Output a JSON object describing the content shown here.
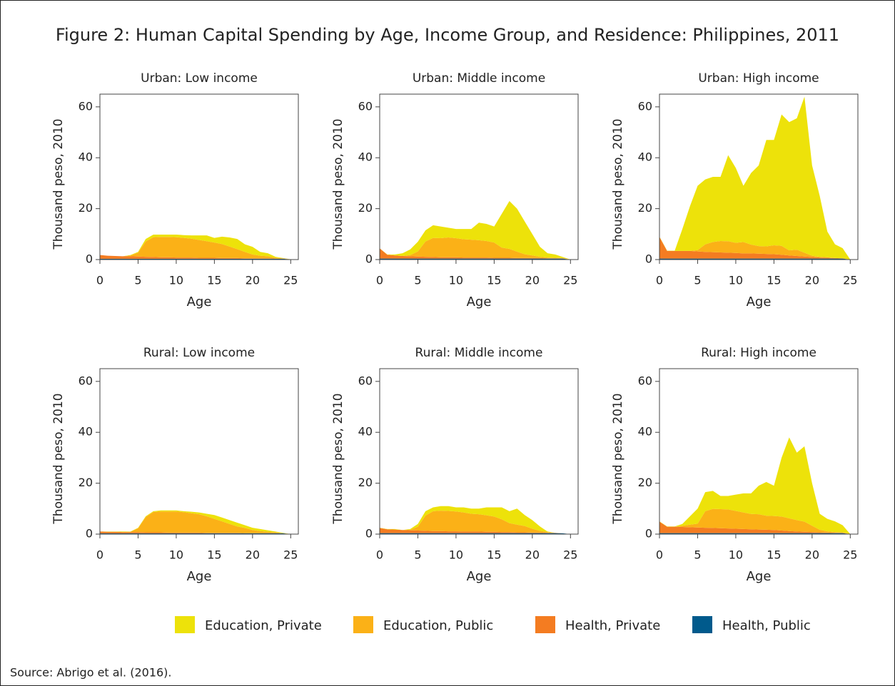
{
  "title": "Figure 2: Human Capital Spending by Age, Income Group, and Residence: Philippines, 2011",
  "source": "Source: Abrigo et al. (2016).",
  "chart_data": [
    {
      "type": "stacked_area",
      "title": "Urban: Low income",
      "xlabel": "Age",
      "ylabel": "Thousand peso, 2010",
      "x": [
        0,
        1,
        2,
        3,
        4,
        5,
        6,
        7,
        8,
        9,
        10,
        11,
        12,
        13,
        14,
        15,
        16,
        17,
        18,
        19,
        20,
        21,
        22,
        23,
        24,
        25
      ],
      "xlim": [
        0,
        26
      ],
      "xticks": [
        0,
        5,
        10,
        15,
        20,
        25
      ],
      "ylim": [
        0,
        65
      ],
      "yticks": [
        0,
        20,
        40,
        60
      ],
      "series": [
        {
          "name": "Education, Private",
          "color": "#ede20a",
          "values": [
            0,
            0,
            0,
            0,
            0.2,
            0.3,
            1,
            1,
            0.9,
            0.9,
            1,
            1.1,
            1.3,
            1.8,
            2.3,
            1.8,
            2.9,
            3.6,
            4,
            3,
            3,
            1.5,
            1.2,
            0.4,
            0.1,
            0
          ]
        },
        {
          "name": "Education, Public",
          "color": "#fbb117",
          "values": [
            0,
            0,
            0,
            0,
            0.3,
            1.5,
            6,
            7.8,
            8,
            8,
            8,
            7.7,
            7.4,
            7,
            6.5,
            6,
            5.5,
            4.5,
            3.5,
            2.5,
            1.5,
            1,
            0.8,
            0.3,
            0.1,
            0
          ]
        },
        {
          "name": "Health, Private",
          "color": "#f47c21",
          "values": [
            1.5,
            1.2,
            1.1,
            1,
            1,
            0.9,
            0.8,
            0.7,
            0.6,
            0.6,
            0.5,
            0.5,
            0.5,
            0.4,
            0.4,
            0.4,
            0.3,
            0.3,
            0.3,
            0.2,
            0.2,
            0.2,
            0.2,
            0.1,
            0.1,
            0
          ]
        },
        {
          "name": "Health, Public",
          "color": "#005a8c",
          "values": [
            0.3,
            0.3,
            0.3,
            0.3,
            0.3,
            0.3,
            0.3,
            0.3,
            0.3,
            0.3,
            0.3,
            0.3,
            0.3,
            0.3,
            0.3,
            0.3,
            0.3,
            0.3,
            0.3,
            0.3,
            0.3,
            0.3,
            0.3,
            0.3,
            0.3,
            0.1
          ]
        }
      ]
    },
    {
      "type": "stacked_area",
      "title": "Urban: Middle income",
      "xlabel": "Age",
      "ylabel": "Thousand peso, 2010",
      "x": [
        0,
        1,
        2,
        3,
        4,
        5,
        6,
        7,
        8,
        9,
        10,
        11,
        12,
        13,
        14,
        15,
        16,
        17,
        18,
        19,
        20,
        21,
        22,
        23,
        24,
        25
      ],
      "xlim": [
        0,
        26
      ],
      "xticks": [
        0,
        5,
        10,
        15,
        20,
        25
      ],
      "ylim": [
        0,
        65
      ],
      "yticks": [
        0,
        20,
        40,
        60
      ],
      "series": [
        {
          "name": "Education, Private",
          "color": "#ede20a",
          "values": [
            0,
            0.1,
            0.4,
            1.1,
            2.2,
            3.8,
            4.4,
            5,
            4.6,
            3.8,
            3.6,
            4,
            4.2,
            6.9,
            6.7,
            6.3,
            13.3,
            18.8,
            16.9,
            12.9,
            8.4,
            3.9,
            1.7,
            1.3,
            0.4,
            0
          ]
        },
        {
          "name": "Education, Public",
          "color": "#fbb117",
          "values": [
            0,
            0,
            0,
            0,
            0.5,
            2,
            6,
            7.5,
            7.5,
            7.8,
            7.5,
            7.2,
            7,
            6.8,
            6.5,
            6,
            4,
            3.5,
            2.5,
            1.5,
            1,
            0.5,
            0.3,
            0.2,
            0.1,
            0
          ]
        },
        {
          "name": "Health, Private",
          "color": "#f47c21",
          "values": [
            4,
            1.5,
            1.2,
            1,
            0.9,
            0.8,
            0.7,
            0.6,
            0.5,
            0.5,
            0.5,
            0.4,
            0.4,
            0.4,
            0.4,
            0.3,
            0.3,
            0.3,
            0.2,
            0.2,
            0.2,
            0.2,
            0.1,
            0.1,
            0.1,
            0
          ]
        },
        {
          "name": "Health, Public",
          "color": "#005a8c",
          "values": [
            0.4,
            0.4,
            0.4,
            0.4,
            0.4,
            0.4,
            0.4,
            0.4,
            0.4,
            0.4,
            0.4,
            0.4,
            0.4,
            0.4,
            0.4,
            0.4,
            0.4,
            0.4,
            0.4,
            0.4,
            0.4,
            0.4,
            0.4,
            0.4,
            0.4,
            0
          ]
        }
      ]
    },
    {
      "type": "stacked_area",
      "title": "Urban: High income",
      "xlabel": "Age",
      "ylabel": "Thousand peso, 2010",
      "x": [
        0,
        1,
        2,
        3,
        4,
        5,
        6,
        7,
        8,
        9,
        10,
        11,
        12,
        13,
        14,
        15,
        16,
        17,
        18,
        19,
        20,
        21,
        22,
        23,
        24,
        25
      ],
      "xlim": [
        0,
        26
      ],
      "xticks": [
        0,
        5,
        10,
        15,
        20,
        25
      ],
      "ylim": [
        0,
        65
      ],
      "yticks": [
        0,
        20,
        40,
        60
      ],
      "series": [
        {
          "name": "Education, Private",
          "color": "#ede20a",
          "values": [
            0.1,
            0.1,
            0.1,
            8.6,
            17.6,
            25.3,
            25.5,
            25.6,
            25.2,
            33.8,
            29.4,
            22.1,
            28.1,
            31.7,
            41.8,
            41.4,
            51.6,
            50.4,
            51.6,
            61.3,
            35.5,
            23.9,
            10.1,
            5.4,
            4,
            0
          ]
        },
        {
          "name": "Education, Public",
          "color": "#fbb117",
          "values": [
            0,
            0,
            0,
            0,
            0,
            0.5,
            3,
            4,
            4.5,
            4.5,
            4,
            4.5,
            3.5,
            3,
            3,
            3.5,
            3.5,
            2,
            2.5,
            1.5,
            0.5,
            0.3,
            0.2,
            0,
            0,
            0
          ]
        },
        {
          "name": "Health, Private",
          "color": "#f47c21",
          "values": [
            8.5,
            3,
            3,
            3,
            3,
            2.8,
            2.6,
            2.5,
            2.4,
            2.3,
            2.2,
            2,
            2,
            1.9,
            1.8,
            1.7,
            1.5,
            1.2,
            1,
            0.8,
            0.6,
            0.4,
            0.3,
            0.2,
            0.1,
            0
          ]
        },
        {
          "name": "Health, Public",
          "color": "#005a8c",
          "values": [
            0.4,
            0.4,
            0.4,
            0.4,
            0.4,
            0.4,
            0.4,
            0.4,
            0.4,
            0.4,
            0.4,
            0.4,
            0.4,
            0.4,
            0.4,
            0.4,
            0.4,
            0.4,
            0.4,
            0.4,
            0.4,
            0.4,
            0.4,
            0.4,
            0.4,
            0
          ]
        }
      ]
    },
    {
      "type": "stacked_area",
      "title": "Rural: Low income",
      "xlabel": "Age",
      "ylabel": "Thousand peso, 2010",
      "x": [
        0,
        1,
        2,
        3,
        4,
        5,
        6,
        7,
        8,
        9,
        10,
        11,
        12,
        13,
        14,
        15,
        16,
        17,
        18,
        19,
        20,
        21,
        22,
        23,
        24,
        25
      ],
      "xlim": [
        0,
        26
      ],
      "xticks": [
        0,
        5,
        10,
        15,
        20,
        25
      ],
      "ylim": [
        0,
        65
      ],
      "yticks": [
        0,
        20,
        40,
        60
      ],
      "series": [
        {
          "name": "Education, Private",
          "color": "#ede20a",
          "values": [
            0,
            0.1,
            0.1,
            0.2,
            0.1,
            0.2,
            0.3,
            0.3,
            0.4,
            0.4,
            0.4,
            0.4,
            0.6,
            0.7,
            1,
            1.5,
            1.5,
            1.5,
            1.5,
            1.1,
            0.9,
            0.8,
            0.6,
            0.3,
            0.1,
            0
          ]
        },
        {
          "name": "Education, Public",
          "color": "#fbb117",
          "values": [
            0,
            0,
            0,
            0,
            0.1,
            1.5,
            6,
            8,
            8.2,
            8.3,
            8.3,
            8,
            7.6,
            7.2,
            6.5,
            5.5,
            4.5,
            3.5,
            2.5,
            2,
            1.2,
            0.8,
            0.5,
            0.3,
            0.1,
            0
          ]
        },
        {
          "name": "Health, Private",
          "color": "#f47c21",
          "values": [
            0.7,
            0.6,
            0.6,
            0.5,
            0.5,
            0.5,
            0.4,
            0.4,
            0.4,
            0.3,
            0.3,
            0.3,
            0.3,
            0.3,
            0.2,
            0.2,
            0.2,
            0.2,
            0.2,
            0.1,
            0.1,
            0.1,
            0.1,
            0.1,
            0,
            0
          ]
        },
        {
          "name": "Health, Public",
          "color": "#005a8c",
          "values": [
            0.3,
            0.3,
            0.3,
            0.3,
            0.3,
            0.3,
            0.3,
            0.3,
            0.3,
            0.3,
            0.3,
            0.3,
            0.3,
            0.3,
            0.3,
            0.3,
            0.3,
            0.3,
            0.3,
            0.3,
            0.3,
            0.3,
            0.3,
            0.3,
            0.3,
            0
          ]
        }
      ]
    },
    {
      "type": "stacked_area",
      "title": "Rural: Middle income",
      "xlabel": "Age",
      "ylabel": "Thousand peso, 2010",
      "x": [
        0,
        1,
        2,
        3,
        4,
        5,
        6,
        7,
        8,
        9,
        10,
        11,
        12,
        13,
        14,
        15,
        16,
        17,
        18,
        19,
        20,
        21,
        22,
        23,
        24,
        25
      ],
      "xlim": [
        0,
        26
      ],
      "xticks": [
        0,
        5,
        10,
        15,
        20,
        25
      ],
      "ylim": [
        0,
        65
      ],
      "yticks": [
        0,
        20,
        40,
        60
      ],
      "series": [
        {
          "name": "Education, Private",
          "color": "#ede20a",
          "values": [
            0.1,
            0.1,
            0.2,
            0,
            0.3,
            1.1,
            1.7,
            1.5,
            1.8,
            1.9,
            1.6,
            2,
            2,
            2.2,
            3.1,
            3.6,
            4.7,
            4.7,
            6.3,
            4.3,
            3.4,
            1.7,
            0.2,
            0,
            0,
            0
          ]
        },
        {
          "name": "Education, Public",
          "color": "#fbb117",
          "values": [
            0,
            0,
            0,
            0,
            0.2,
            1.5,
            6,
            7.8,
            8,
            8,
            7.8,
            7.5,
            7,
            6.8,
            6.5,
            6,
            5,
            3.5,
            3,
            2.5,
            1.5,
            0.7,
            0.3,
            0,
            0,
            0
          ]
        },
        {
          "name": "Health, Private",
          "color": "#f47c21",
          "values": [
            2,
            1.5,
            1.4,
            1.2,
            1.1,
            1,
            0.9,
            0.8,
            0.8,
            0.7,
            0.7,
            0.6,
            0.6,
            0.6,
            0.5,
            0.5,
            0.4,
            0.4,
            0.3,
            0.3,
            0.2,
            0.2,
            0.1,
            0.1,
            0,
            0
          ]
        },
        {
          "name": "Health, Public",
          "color": "#005a8c",
          "values": [
            0.4,
            0.4,
            0.4,
            0.4,
            0.4,
            0.4,
            0.4,
            0.4,
            0.4,
            0.4,
            0.4,
            0.4,
            0.4,
            0.4,
            0.4,
            0.4,
            0.4,
            0.4,
            0.4,
            0.4,
            0.4,
            0.4,
            0.4,
            0.4,
            0.3,
            0
          ]
        }
      ]
    },
    {
      "type": "stacked_area",
      "title": "Rural: High income",
      "xlabel": "Age",
      "ylabel": "Thousand peso, 2010",
      "x": [
        0,
        1,
        2,
        3,
        4,
        5,
        6,
        7,
        8,
        9,
        10,
        11,
        12,
        13,
        14,
        15,
        16,
        17,
        18,
        19,
        20,
        21,
        22,
        23,
        24,
        25
      ],
      "xlim": [
        0,
        26
      ],
      "xticks": [
        0,
        5,
        10,
        15,
        20,
        25
      ],
      "ylim": [
        0,
        65
      ],
      "yticks": [
        0,
        20,
        40,
        60
      ],
      "series": [
        {
          "name": "Education, Private",
          "color": "#ede20a",
          "values": [
            0.1,
            0.1,
            0.1,
            0.7,
            3.3,
            5.9,
            7.5,
            7.1,
            5.2,
            5.3,
            6.4,
            7.5,
            8.1,
            11.2,
            13.3,
            11.9,
            23.1,
            31.8,
            26.5,
            29.6,
            16.7,
            6.3,
            4.9,
            4.2,
            2.8,
            0
          ]
        },
        {
          "name": "Education, Public",
          "color": "#fbb117",
          "values": [
            0,
            0,
            0,
            0.5,
            1,
            1.5,
            6.5,
            7.5,
            7.5,
            7.5,
            7,
            6.5,
            6,
            6,
            5.5,
            5.5,
            5.5,
            5,
            4.5,
            4,
            2.5,
            1,
            0.5,
            0.3,
            0.2,
            0
          ]
        },
        {
          "name": "Health, Private",
          "color": "#f47c21",
          "values": [
            4.5,
            2.5,
            2.5,
            2.4,
            2.3,
            2.2,
            2.1,
            2,
            1.9,
            1.8,
            1.7,
            1.6,
            1.5,
            1.4,
            1.3,
            1.2,
            1,
            0.8,
            0.6,
            0.5,
            0.4,
            0.3,
            0.2,
            0.1,
            0.1,
            0
          ]
        },
        {
          "name": "Health, Public",
          "color": "#005a8c",
          "values": [
            0.4,
            0.4,
            0.4,
            0.4,
            0.4,
            0.4,
            0.4,
            0.4,
            0.4,
            0.4,
            0.4,
            0.4,
            0.4,
            0.4,
            0.4,
            0.4,
            0.4,
            0.4,
            0.4,
            0.4,
            0.4,
            0.4,
            0.4,
            0.4,
            0.4,
            0
          ]
        }
      ]
    }
  ]
}
